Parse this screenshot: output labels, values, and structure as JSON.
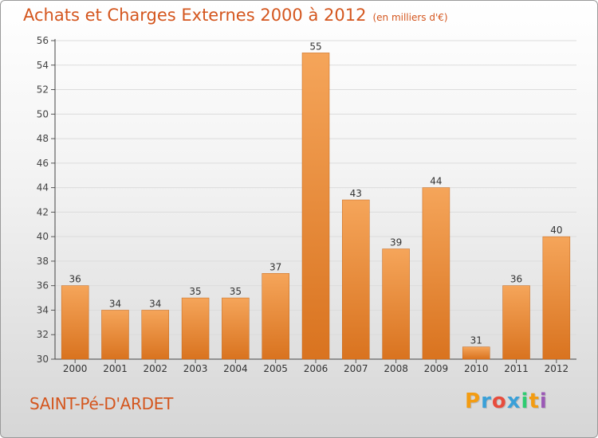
{
  "title": "Achats et Charges Externes 2000 à 2012",
  "unit": "(en milliers d'€)",
  "place": "SAINT-Pé-D'ARDET",
  "brand": {
    "letters": [
      "P",
      "r",
      "o",
      "x",
      "i",
      "t",
      "i"
    ],
    "colors": [
      "#f39c12",
      "#3aa0d8",
      "#e74c3c",
      "#3aa0d8",
      "#2ecc71",
      "#f39c12",
      "#9b59b6"
    ]
  },
  "colors": {
    "title": "#d4561e",
    "bar_top": "#f5a55a",
    "bar_bottom": "#d9731f"
  },
  "chart_data": {
    "type": "bar",
    "categories": [
      "2000",
      "2001",
      "2002",
      "2003",
      "2004",
      "2005",
      "2006",
      "2007",
      "2008",
      "2009",
      "2010",
      "2011",
      "2012"
    ],
    "values": [
      36,
      34,
      34,
      35,
      35,
      37,
      55,
      43,
      39,
      44,
      31,
      36,
      40
    ],
    "ylim": [
      30,
      56
    ],
    "yticks": [
      30,
      32,
      34,
      36,
      38,
      40,
      42,
      44,
      46,
      48,
      50,
      52,
      54,
      56
    ],
    "grid": true
  }
}
